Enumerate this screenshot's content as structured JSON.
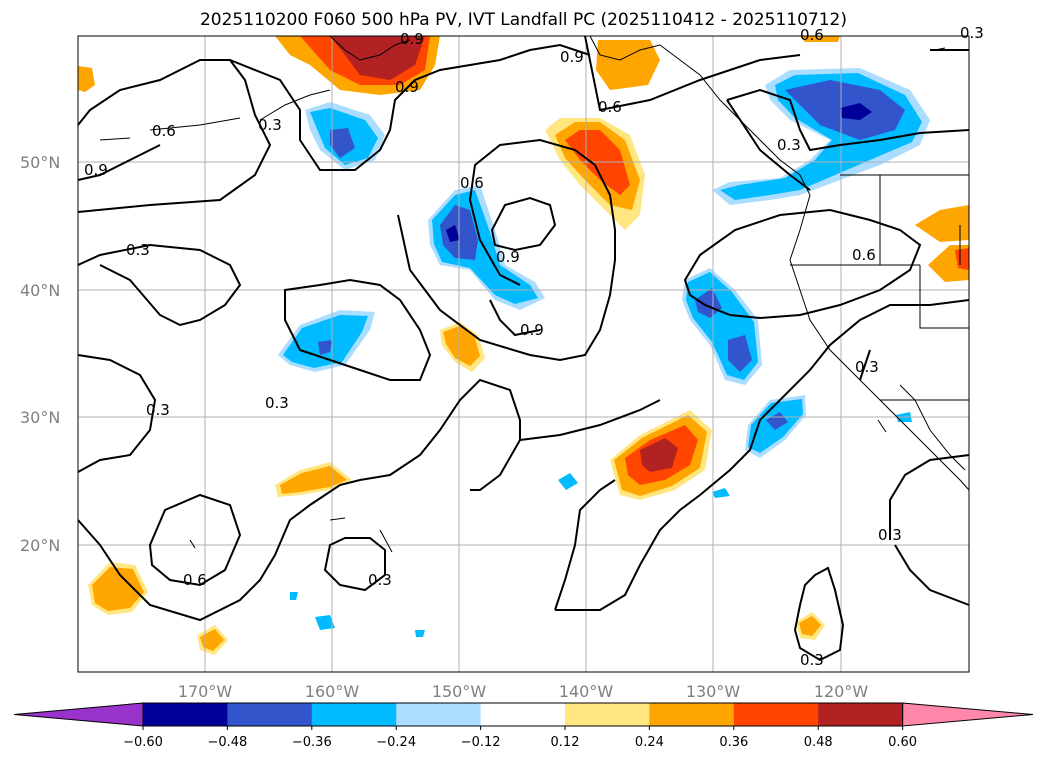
{
  "title": "2025110200 F060 500 hPa PV, IVT Landfall PC (2025110412 - 2025110712)",
  "lat_labels": [
    "50°N",
    "40°N",
    "30°N",
    "20°N"
  ],
  "lon_labels": [
    "170°W",
    "160°W",
    "150°W",
    "140°W",
    "130°W",
    "120°W"
  ],
  "contour_labels": [
    "0.9",
    "0.9",
    "0.6",
    "0.3",
    "0.6",
    "0.9",
    "0.3",
    "0.6",
    "0.9",
    "0.9",
    "0.9",
    "0.6",
    "0.3",
    "0.3",
    "0.3",
    "0.3",
    "0.3",
    "0.6",
    "0.3",
    "0.3",
    "0.3",
    "0.6"
  ],
  "colorbar": {
    "ticks": [
      "−0.60",
      "−0.48",
      "−0.36",
      "−0.24",
      "−0.12",
      "0.12",
      "0.24",
      "0.36",
      "0.48",
      "0.60"
    ],
    "colors": [
      "#9933cc",
      "#000099",
      "#3355cc",
      "#00bbff",
      "#aaddff",
      "#ffffff",
      "#ffe680",
      "#ffa500",
      "#ff4500",
      "#b22222",
      "#ff88aa"
    ]
  }
}
